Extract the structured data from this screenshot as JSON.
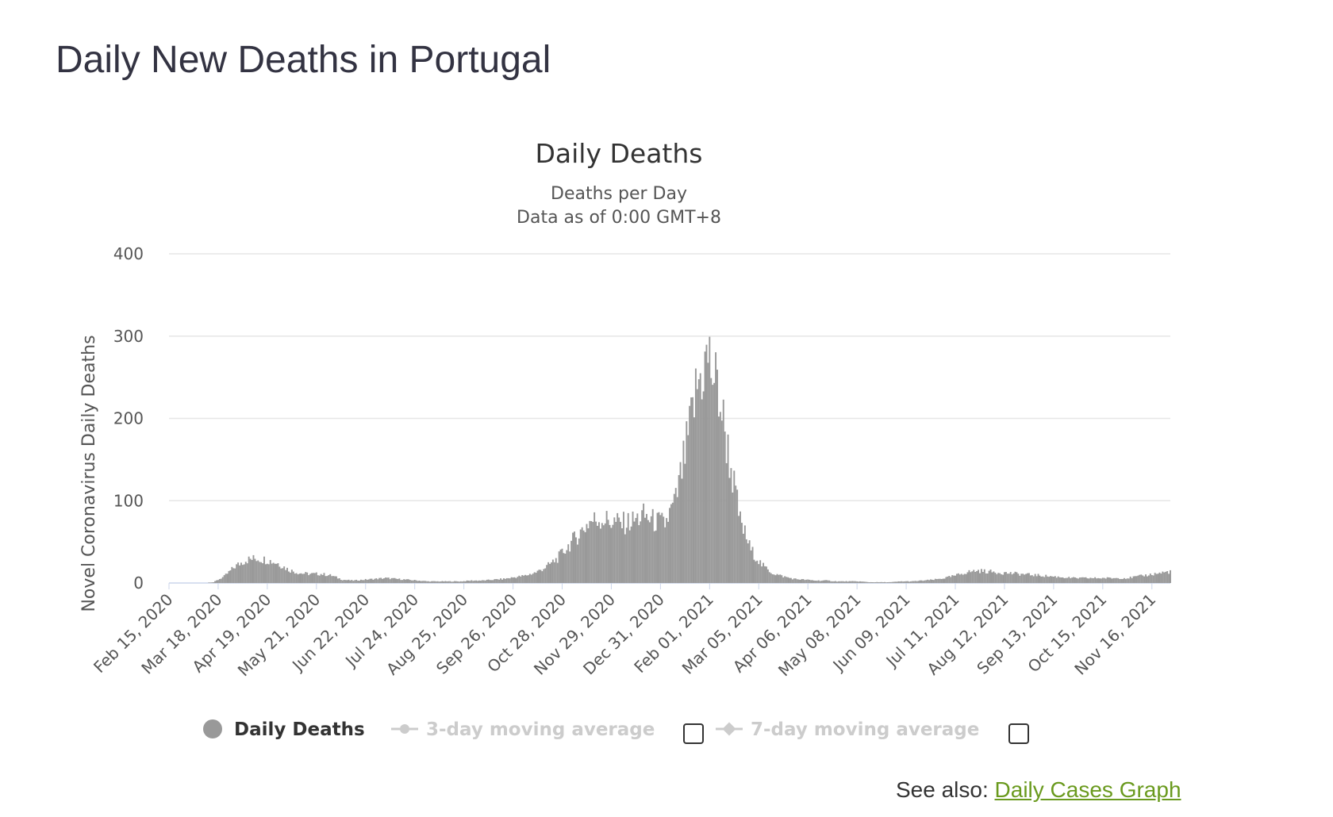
{
  "page": {
    "title": "Daily New Deaths in Portugal"
  },
  "see_also": {
    "prefix": "See also: ",
    "link_label": "Daily Cases Graph"
  },
  "legend": {
    "items": [
      {
        "label": "Daily Deaths",
        "active": true,
        "has_checkbox": false
      },
      {
        "label": "3-day moving average",
        "active": false,
        "has_checkbox": true,
        "checked": false
      },
      {
        "label": "7-day moving average",
        "active": false,
        "has_checkbox": true,
        "checked": false
      }
    ]
  },
  "colors": {
    "bar": "#999999",
    "grid": "#e6e6e6",
    "baseline": "#ccd6eb",
    "legend_inactive": "#cccccc",
    "legend_active": "#333333",
    "link": "#6a9a1e"
  },
  "chart_data": {
    "type": "bar",
    "title": "Daily Deaths",
    "subtitle_lines": [
      "Deaths per Day",
      "Data as of 0:00 GMT+8"
    ],
    "ylabel": "Novel Coronavirus Daily Deaths",
    "xlabel": "",
    "ylim": [
      0,
      400
    ],
    "yticks": [
      0,
      100,
      200,
      300,
      400
    ],
    "grid": true,
    "legend_placement": "bottom",
    "x_tick_labels": [
      "Feb 15, 2020",
      "Mar 18, 2020",
      "Apr 19, 2020",
      "May 21, 2020",
      "Jun 22, 2020",
      "Jul 24, 2020",
      "Aug 25, 2020",
      "Sep 26, 2020",
      "Oct 28, 2020",
      "Nov 29, 2020",
      "Dec 31, 2020",
      "Feb 01, 2021",
      "Mar 05, 2021",
      "Apr 06, 2021",
      "May 08, 2021",
      "Jun 09, 2021",
      "Jul 11, 2021",
      "Aug 12, 2021",
      "Sep 13, 2021",
      "Oct 15, 2021",
      "Nov 16, 2021"
    ],
    "series": [
      {
        "name": "Daily Deaths",
        "start_date": "Feb 15, 2020",
        "interval": "1 day",
        "weekly_profile": [
          [
            "Feb 15, 2020",
            0
          ],
          [
            "Feb 22, 2020",
            0
          ],
          [
            "Mar 01, 2020",
            0
          ],
          [
            "Mar 08, 2020",
            0
          ],
          [
            "Mar 15, 2020",
            1
          ],
          [
            "Mar 22, 2020",
            8
          ],
          [
            "Mar 29, 2020",
            20
          ],
          [
            "Apr 05, 2020",
            28
          ],
          [
            "Apr 12, 2020",
            30
          ],
          [
            "Apr 19, 2020",
            28
          ],
          [
            "Apr 26, 2020",
            24
          ],
          [
            "May 03, 2020",
            16
          ],
          [
            "May 10, 2020",
            12
          ],
          [
            "May 17, 2020",
            11
          ],
          [
            "May 24, 2020",
            11
          ],
          [
            "May 31, 2020",
            9
          ],
          [
            "Jun 07, 2020",
            4
          ],
          [
            "Jun 14, 2020",
            3
          ],
          [
            "Jun 21, 2020",
            4
          ],
          [
            "Jun 28, 2020",
            5
          ],
          [
            "Jul 05, 2020",
            6
          ],
          [
            "Jul 12, 2020",
            5
          ],
          [
            "Jul 19, 2020",
            4
          ],
          [
            "Jul 26, 2020",
            3
          ],
          [
            "Aug 02, 2020",
            2
          ],
          [
            "Aug 09, 2020",
            2
          ],
          [
            "Aug 16, 2020",
            2
          ],
          [
            "Aug 23, 2020",
            2
          ],
          [
            "Aug 30, 2020",
            3
          ],
          [
            "Sep 06, 2020",
            3
          ],
          [
            "Sep 13, 2020",
            4
          ],
          [
            "Sep 20, 2020",
            5
          ],
          [
            "Sep 27, 2020",
            7
          ],
          [
            "Oct 04, 2020",
            9
          ],
          [
            "Oct 11, 2020",
            13
          ],
          [
            "Oct 18, 2020",
            20
          ],
          [
            "Oct 25, 2020",
            30
          ],
          [
            "Nov 01, 2020",
            45
          ],
          [
            "Nov 08, 2020",
            60
          ],
          [
            "Nov 15, 2020",
            75
          ],
          [
            "Nov 22, 2020",
            78
          ],
          [
            "Nov 29, 2020",
            75
          ],
          [
            "Dec 06, 2020",
            72
          ],
          [
            "Dec 13, 2020",
            75
          ],
          [
            "Dec 20, 2020",
            82
          ],
          [
            "Dec 27, 2020",
            75
          ],
          [
            "Jan 03, 2021",
            72
          ],
          [
            "Jan 10, 2021",
            100
          ],
          [
            "Jan 17, 2021",
            165
          ],
          [
            "Jan 24, 2021",
            240
          ],
          [
            "Jan 31, 2021",
            275
          ],
          [
            "Feb 07, 2021",
            230
          ],
          [
            "Feb 14, 2021",
            150
          ],
          [
            "Feb 21, 2021",
            75
          ],
          [
            "Feb 28, 2021",
            40
          ],
          [
            "Mar 07, 2021",
            22
          ],
          [
            "Mar 14, 2021",
            12
          ],
          [
            "Mar 21, 2021",
            8
          ],
          [
            "Mar 28, 2021",
            5
          ],
          [
            "Apr 04, 2021",
            4
          ],
          [
            "Apr 11, 2021",
            3
          ],
          [
            "Apr 18, 2021",
            3
          ],
          [
            "Apr 25, 2021",
            2
          ],
          [
            "May 02, 2021",
            2
          ],
          [
            "May 09, 2021",
            2
          ],
          [
            "May 16, 2021",
            1
          ],
          [
            "May 23, 2021",
            1
          ],
          [
            "May 30, 2021",
            1
          ],
          [
            "Jun 06, 2021",
            2
          ],
          [
            "Jun 13, 2021",
            2
          ],
          [
            "Jun 20, 2021",
            3
          ],
          [
            "Jun 27, 2021",
            4
          ],
          [
            "Jul 04, 2021",
            6
          ],
          [
            "Jul 11, 2021",
            9
          ],
          [
            "Jul 18, 2021",
            13
          ],
          [
            "Jul 25, 2021",
            15
          ],
          [
            "Aug 01, 2021",
            14
          ],
          [
            "Aug 08, 2021",
            13
          ],
          [
            "Aug 15, 2021",
            12
          ],
          [
            "Aug 22, 2021",
            11
          ],
          [
            "Aug 29, 2021",
            10
          ],
          [
            "Sep 05, 2021",
            9
          ],
          [
            "Sep 12, 2021",
            8
          ],
          [
            "Sep 19, 2021",
            7
          ],
          [
            "Sep 26, 2021",
            6
          ],
          [
            "Oct 03, 2021",
            6
          ],
          [
            "Oct 10, 2021",
            6
          ],
          [
            "Oct 17, 2021",
            6
          ],
          [
            "Oct 24, 2021",
            6
          ],
          [
            "Oct 31, 2021",
            6
          ],
          [
            "Nov 07, 2021",
            8
          ],
          [
            "Nov 14, 2021",
            10
          ],
          [
            "Nov 21, 2021",
            12
          ],
          [
            "Nov 28, 2021",
            14
          ]
        ]
      }
    ]
  }
}
